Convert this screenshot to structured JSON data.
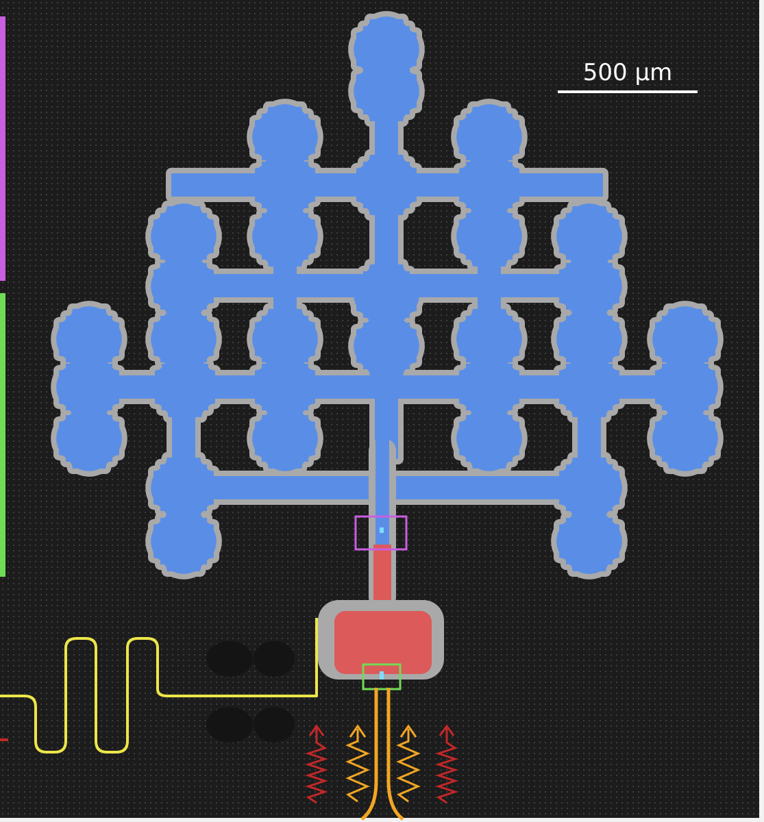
{
  "scale_bar": {
    "label": "500 µm"
  },
  "colors": {
    "background": "#1c1c1c",
    "fractal_fill": "#5a8ee6",
    "fractal_border": "#a9a9a9",
    "pad_fill": "#dc5a5a",
    "yellow_line": "#ece64a",
    "orange_line": "#f2a623",
    "red_arrows": "#c22828",
    "magenta_marker": "#c95ee0",
    "green_marker": "#6fdc55",
    "scale_bar": "#ffffff"
  }
}
